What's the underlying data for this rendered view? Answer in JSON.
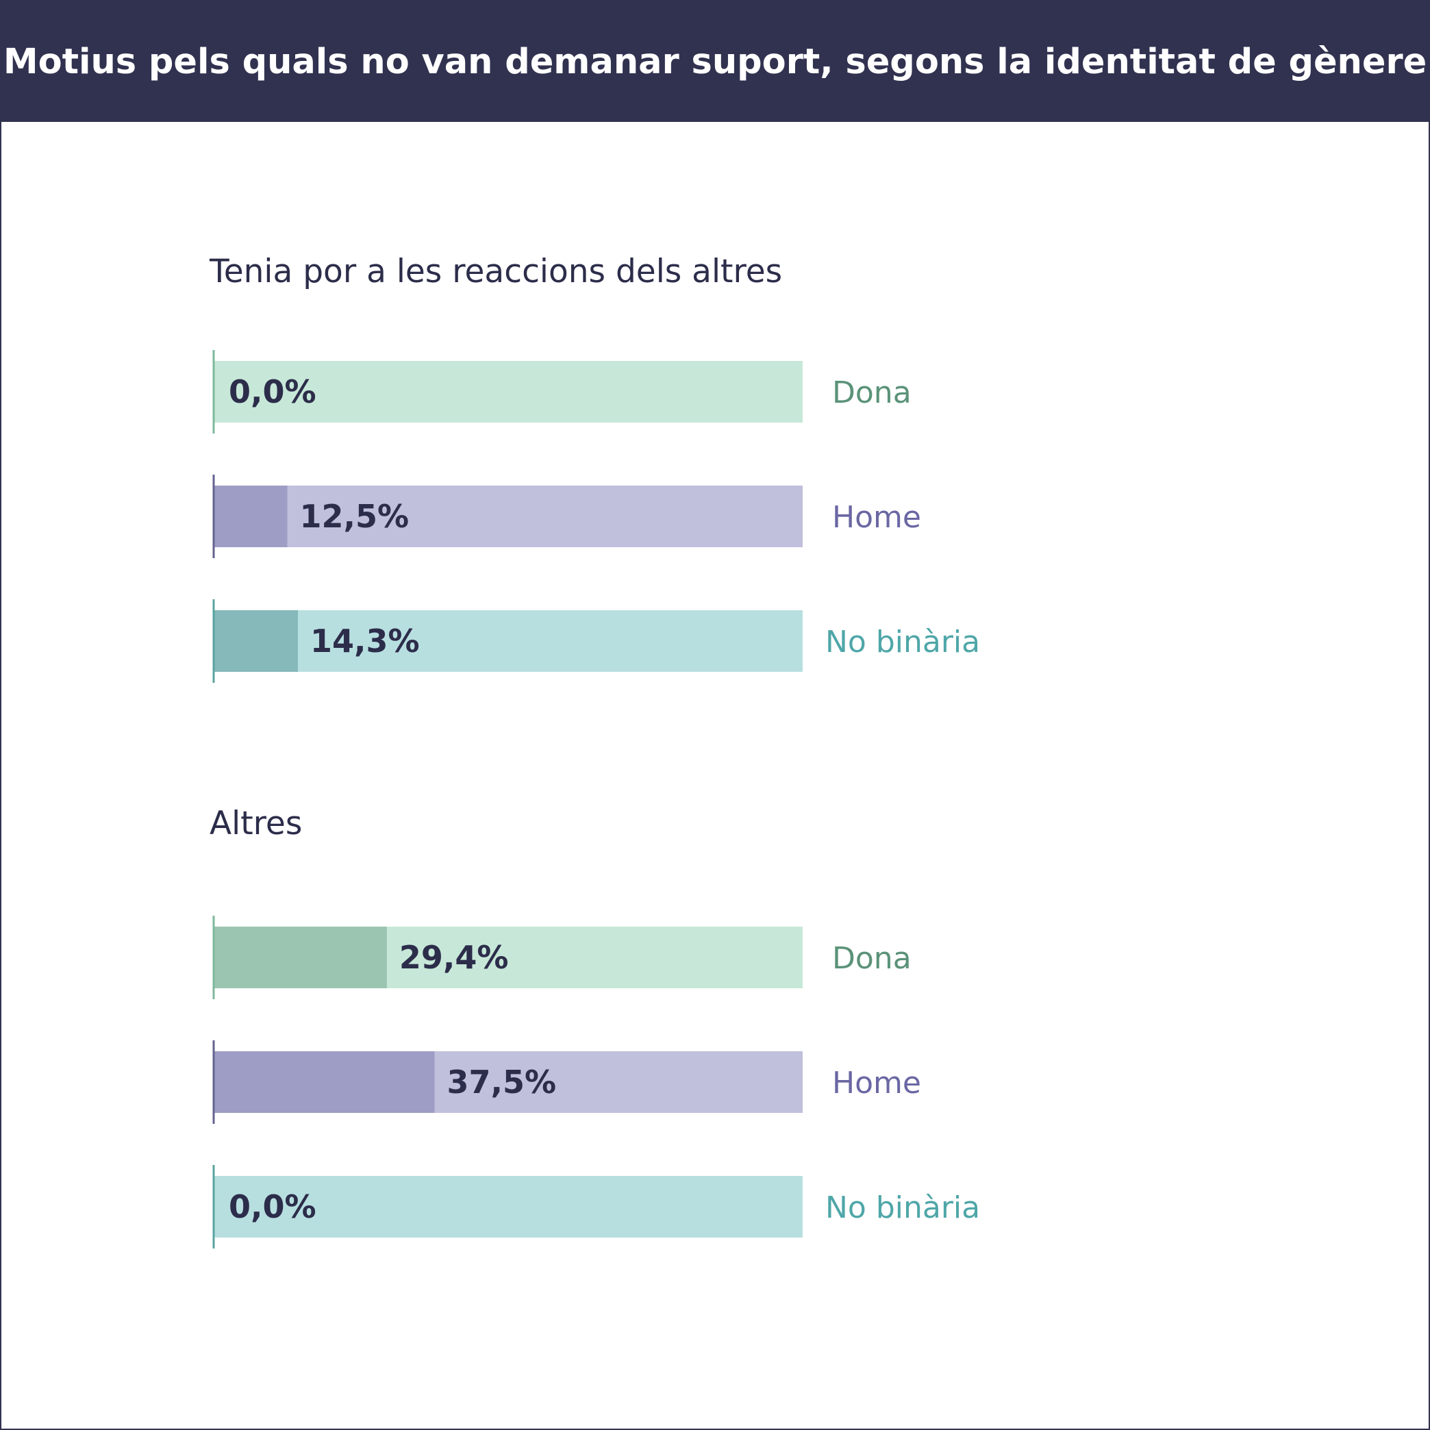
{
  "header": {
    "title": "Motius pels quals no van demanar suport, segons la identitat de gènere"
  },
  "colors": {
    "header_bg": "#313250",
    "dona": {
      "track": "#c7e8d8",
      "fill": "#9cc5b1",
      "axis": "#7fb89c",
      "label": "#5a9278"
    },
    "home": {
      "track": "#c0c0dc",
      "fill": "#9d9dc5",
      "axis": "#63638f",
      "label": "#6a67a3"
    },
    "no_binaria": {
      "track": "#b8dfe0",
      "fill": "#86b9b9",
      "axis": "#5aa3a0",
      "label": "#4fa6a8"
    }
  },
  "chart_data": {
    "type": "bar",
    "orientation": "horizontal",
    "xlim": [
      0,
      100
    ],
    "unit": "%",
    "groups": [
      {
        "title": "Tenia por a les reaccions dels altres",
        "bars": [
          {
            "category": "Dona",
            "key": "dona",
            "value": 0.0,
            "label": "0,0%"
          },
          {
            "category": "Home",
            "key": "home",
            "value": 12.5,
            "label": "12,5%"
          },
          {
            "category": "No binària",
            "key": "no_binaria",
            "value": 14.3,
            "label": "14,3%"
          }
        ]
      },
      {
        "title": "Altres",
        "bars": [
          {
            "category": "Dona",
            "key": "dona",
            "value": 29.4,
            "label": "29,4%"
          },
          {
            "category": "Home",
            "key": "home",
            "value": 37.5,
            "label": "37,5%"
          },
          {
            "category": "No binària",
            "key": "no_binaria",
            "value": 0.0,
            "label": "0,0%"
          }
        ]
      }
    ]
  }
}
